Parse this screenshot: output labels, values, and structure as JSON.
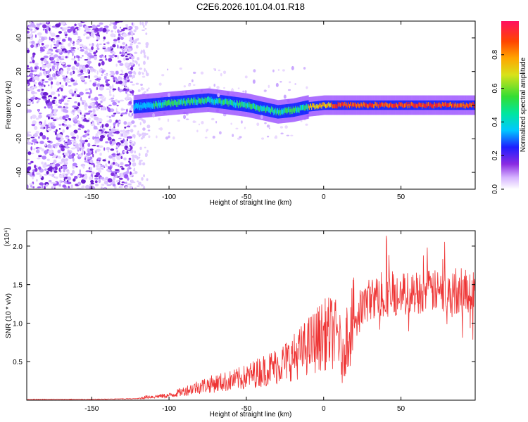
{
  "title": "C2E6.2026.101.04.01.R18",
  "chart_data": [
    {
      "type": "heatmap",
      "xlabel": "Height of straight line (km)",
      "ylabel": "Frequency (Hz)",
      "xlim": [
        -192,
        98
      ],
      "ylim": [
        -50,
        50
      ],
      "xticks": [
        -150,
        -100,
        -50,
        0,
        50
      ],
      "yticks": [
        -40,
        -20,
        0,
        20,
        40
      ],
      "colorbar": {
        "label": "Normalized spectral amplitude",
        "range": [
          0,
          1
        ],
        "ticks": [
          0.0,
          0.2,
          0.4,
          0.6,
          0.8
        ]
      },
      "description_points": [
        {
          "x": -190,
          "region": "noise"
        },
        {
          "x": -125,
          "region": "noise-edge"
        },
        {
          "x": -123,
          "centre_freq": -1
        },
        {
          "x": -100,
          "centre_freq": 1
        },
        {
          "x": -75,
          "centre_freq": 3
        },
        {
          "x": -50,
          "centre_freq": 0
        },
        {
          "x": -30,
          "centre_freq": -4
        },
        {
          "x": -20,
          "centre_freq": -3
        },
        {
          "x": -10,
          "centre_freq": -1
        },
        {
          "x": 0,
          "centre_freq": 0
        },
        {
          "x": 50,
          "centre_freq": 0
        },
        {
          "x": 98,
          "centre_freq": 0
        }
      ]
    },
    {
      "type": "line",
      "xlabel": "Height of straight line (km)",
      "ylabel": "SNR (10 * v/v)",
      "yscale_label": "(x10⁴)",
      "xlim": [
        -192,
        98
      ],
      "ylim": [
        0,
        2.2
      ],
      "xticks": [
        -150,
        -100,
        -50,
        0,
        50
      ],
      "yticks": [
        0.5,
        1.0,
        1.5,
        2.0
      ],
      "series": [
        {
          "name": "SNR",
          "color": "#ee3333",
          "envelope": {
            "x": [
              -192,
              -150,
              -120,
              -115,
              -100,
              -90,
              -80,
              -70,
              -60,
              -50,
              -40,
              -30,
              -20,
              -10,
              -5,
              0,
              5,
              10,
              12,
              15,
              20,
              25,
              30,
              40,
              50,
              60,
              70,
              80,
              90,
              98
            ],
            "mean": [
              0.01,
              0.01,
              0.02,
              0.04,
              0.06,
              0.12,
              0.18,
              0.22,
              0.25,
              0.3,
              0.38,
              0.45,
              0.55,
              0.7,
              0.78,
              0.85,
              0.88,
              0.82,
              0.45,
              0.85,
              1.05,
              1.2,
              1.32,
              1.35,
              1.38,
              1.4,
              1.42,
              1.38,
              1.4,
              1.42
            ]
          }
        }
      ]
    }
  ]
}
